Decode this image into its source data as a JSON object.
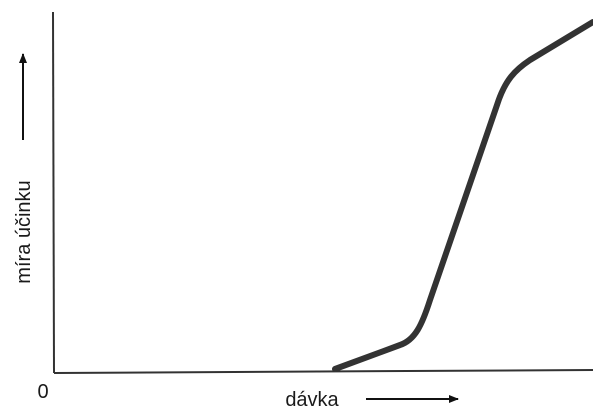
{
  "y_axis_label": "míra účinku",
  "x_axis_label": "dávka",
  "origin_label": "0"
}
